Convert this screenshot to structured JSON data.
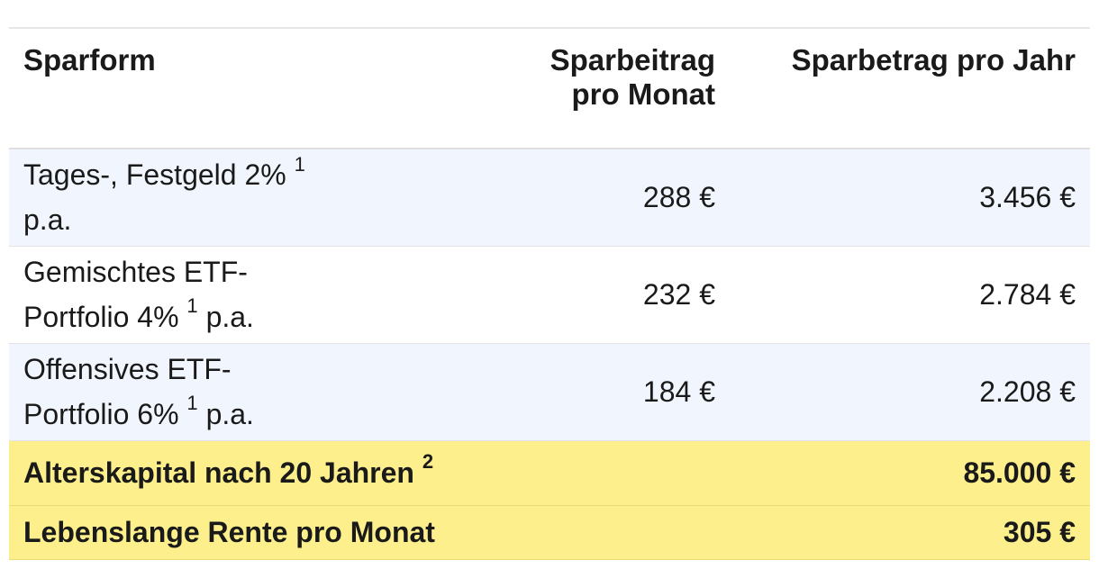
{
  "table": {
    "headers": [
      "Sparform",
      "Sparbeitrag pro Monat",
      "Sparbetrag pro Jahr"
    ],
    "rows": [
      {
        "form": "Tages-, Festgeld 2%",
        "footnote": "1",
        "suffix": "p.a.",
        "monthly": "288 €",
        "yearly": "3.456 €"
      },
      {
        "form": "Gemischtes ETF-Portfolio 4%",
        "footnote": "1",
        "suffix": "p.a.",
        "monthly": "232 €",
        "yearly": "2.784 €"
      },
      {
        "form": "Offensives ETF-Portfolio 6%",
        "footnote": "1",
        "suffix": "p.a.",
        "monthly": "184 €",
        "yearly": "2.208 €"
      }
    ],
    "summary": [
      {
        "label": "Alterskapital nach 20 Jahren",
        "footnote": "2",
        "value": "85.000 €"
      },
      {
        "label": "Lebenslange Rente pro Monat",
        "footnote": "",
        "value": "305 €"
      }
    ]
  },
  "colors": {
    "row_alt": "#f1f5fd",
    "summary_bg": "#fdf08c"
  }
}
